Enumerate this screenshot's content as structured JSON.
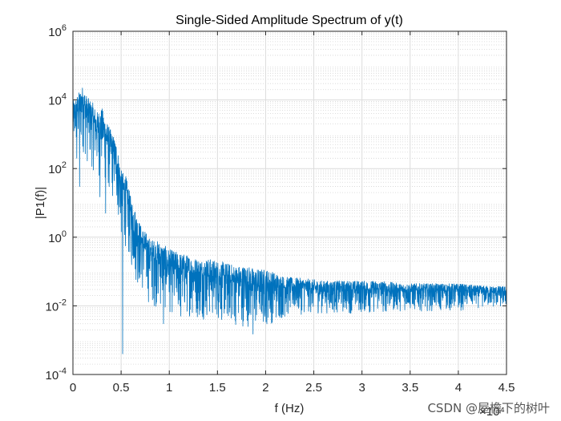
{
  "chart_data": {
    "type": "line",
    "title": "Single-Sided Amplitude Spectrum of y(t)",
    "xlabel": "f (Hz)",
    "ylabel": "|P1(f)|",
    "x_exponent_label": "×10⁴",
    "xlim": [
      0,
      45000
    ],
    "ylim": [
      0.0001,
      1000000
    ],
    "yscale": "log",
    "grid": true,
    "minor_grid": true,
    "x_ticks": [
      0,
      5000,
      10000,
      15000,
      20000,
      25000,
      30000,
      35000,
      40000,
      45000
    ],
    "x_tick_labels": [
      "0",
      "0.5",
      "1",
      "1.5",
      "2",
      "2.5",
      "3",
      "3.5",
      "4",
      "4.5"
    ],
    "y_ticks": [
      0.0001,
      0.01,
      1,
      100,
      10000,
      1000000
    ],
    "y_tick_labels": [
      {
        "base": "10",
        "exp": "-4"
      },
      {
        "base": "10",
        "exp": "-2"
      },
      {
        "base": "10",
        "exp": "0"
      },
      {
        "base": "10",
        "exp": "2"
      },
      {
        "base": "10",
        "exp": "4"
      },
      {
        "base": "10",
        "exp": "6"
      }
    ],
    "series": [
      {
        "color": "#0072BD",
        "x": [
          0,
          500,
          1000,
          1500,
          2000,
          2500,
          3000,
          3500,
          4000,
          4500,
          5000,
          5500,
          6000,
          6500,
          7000,
          7500,
          8000,
          9000,
          10000,
          11000,
          12000,
          13000,
          14000,
          15000,
          16000,
          17000,
          18000,
          19000,
          20000,
          22000,
          24000,
          26000,
          28000,
          30000,
          32000,
          34000,
          36000,
          38000,
          40000,
          42000,
          44000,
          45000
        ],
        "y": [
          3000,
          5000,
          10000,
          4000,
          3000,
          1500,
          2000,
          800,
          400,
          200,
          30,
          20,
          5,
          2,
          0.8,
          0.5,
          0.3,
          0.25,
          0.15,
          0.12,
          0.1,
          0.08,
          0.08,
          0.07,
          0.06,
          0.05,
          0.05,
          0.04,
          0.04,
          0.035,
          0.035,
          0.03,
          0.03,
          0.03,
          0.03,
          0.028,
          0.028,
          0.028,
          0.028,
          0.026,
          0.025,
          0.025
        ],
        "noise_upper_factor": [
          3,
          3,
          2.5,
          3,
          3,
          3,
          3,
          3,
          3,
          3,
          3,
          3,
          3,
          3,
          3,
          3,
          3,
          3,
          3,
          3,
          3,
          3,
          3,
          3,
          3,
          3,
          3,
          3,
          3,
          2,
          1.8,
          1.8,
          1.8,
          1.8,
          1.8,
          1.6,
          1.6,
          1.6,
          1.6,
          1.5,
          1.5,
          1.5
        ],
        "noise_lower_factor": [
          10,
          20,
          30,
          30,
          30,
          30,
          30,
          30,
          30,
          30,
          40,
          40,
          40,
          40,
          30,
          30,
          30,
          30,
          25,
          25,
          20,
          20,
          20,
          20,
          20,
          20,
          20,
          20,
          15,
          8,
          6,
          5,
          5,
          5,
          5,
          4,
          4,
          4,
          4,
          3,
          3,
          3
        ],
        "spikes": [
          {
            "x": 5150,
            "y": 0.0004
          },
          {
            "x": 9400,
            "y": 0.003
          },
          {
            "x": 10500,
            "y": 0.02
          },
          {
            "x": 11200,
            "y": 0.005
          },
          {
            "x": 14800,
            "y": 0.008
          },
          {
            "x": 16000,
            "y": 0.006
          },
          {
            "x": 17500,
            "y": 0.004
          },
          {
            "x": 18700,
            "y": 0.0015
          },
          {
            "x": 19400,
            "y": 0.008
          },
          {
            "x": 400,
            "y": 200
          },
          {
            "x": 700,
            "y": 30
          },
          {
            "x": 2800,
            "y": 15
          },
          {
            "x": 3400,
            "y": 5
          }
        ]
      }
    ]
  },
  "watermark": "CSDN @屋檐下的树叶"
}
